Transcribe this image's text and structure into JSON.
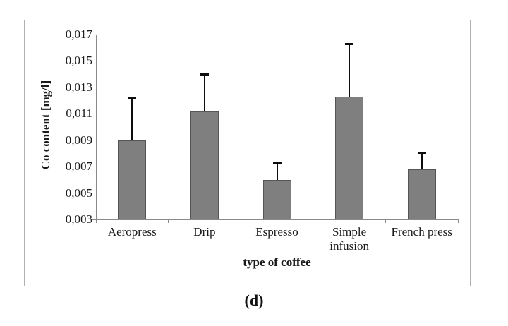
{
  "figure": {
    "caption": "(d)"
  },
  "chart_data": {
    "type": "bar",
    "title": "",
    "xlabel": "type of coffee",
    "ylabel": "Co content [mg/l]",
    "categories": [
      "Aeropress",
      "Drip",
      "Espresso",
      "Simple\ninfusion",
      "French press"
    ],
    "values": [
      0.009,
      0.0112,
      0.006,
      0.0123,
      0.0068
    ],
    "error_plus": [
      0.0032,
      0.0028,
      0.0013,
      0.004,
      0.0013
    ],
    "ylim": [
      0.003,
      0.017
    ],
    "y_ticks": [
      0.003,
      0.005,
      0.007,
      0.009,
      0.011,
      0.013,
      0.015,
      0.017
    ],
    "y_tick_labels": [
      "0,003",
      "0,005",
      "0,007",
      "0,009",
      "0,011",
      "0,013",
      "0,015",
      "0,017"
    ],
    "grid": true,
    "legend": "none",
    "colors": {
      "bar_fill": "#7f7f7f",
      "bar_border": "#555555",
      "error_bar": "#0d0d0d",
      "gridline": "#c6c6c6",
      "axis": "#8a8a8a"
    }
  }
}
